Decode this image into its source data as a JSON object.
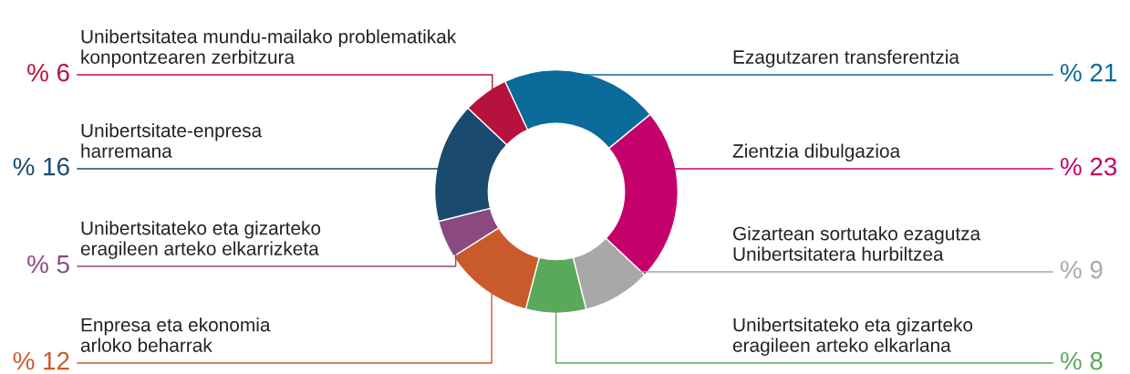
{
  "chart_data": {
    "type": "donut",
    "categories": [
      "Ezagutzaren transferentzia",
      "Zientzia dibulgazioa",
      "Gizartean sortutako ezagutza\nUnibertsitatera hurbiltzea",
      "Unibertsitateko eta gizarteko\neragileen arteko elkarlana",
      "Enpresa eta ekonomia\narloko beharrak",
      "Unibertsitateko eta gizarteko\neragileen arteko elkarrizketa",
      "Unibertsitate-enpresa\nharremana",
      "Unibertsitatea mundu-mailako problematikak\nkonpontzearen zerbitzura"
    ],
    "values": [
      21,
      23,
      9,
      8,
      12,
      5,
      16,
      6
    ],
    "value_labels": [
      "% 21",
      "% 23",
      "% 9",
      "% 8",
      "% 12",
      "% 5",
      "% 16",
      "% 6"
    ],
    "colors": [
      "#0a6a9a",
      "#c4006b",
      "#a8a8a8",
      "#5aa85a",
      "#c95a2c",
      "#8a4a80",
      "#1a4a6e",
      "#b5123e"
    ]
  }
}
